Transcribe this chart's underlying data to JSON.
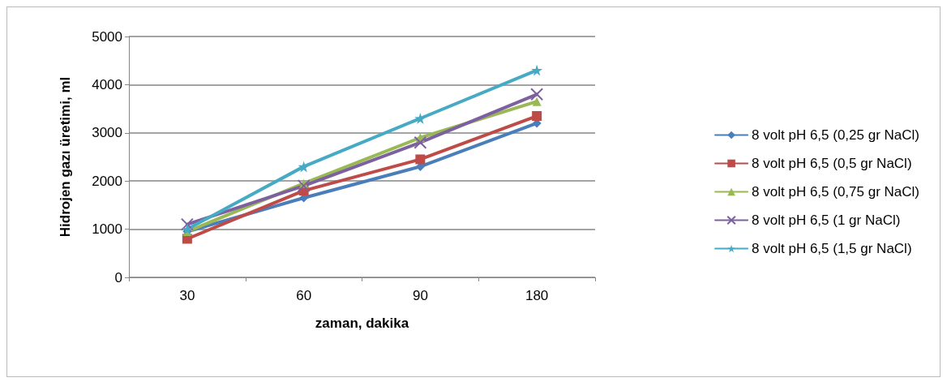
{
  "chart_data": {
    "type": "line",
    "xlabel": "zaman, dakika",
    "ylabel": "Hidrojen gazı üretimi, ml",
    "categories": [
      "30",
      "60",
      "90",
      "180"
    ],
    "ylim": [
      0,
      5000
    ],
    "yticks": [
      0,
      1000,
      2000,
      3000,
      4000,
      5000
    ],
    "grid": "y",
    "legend": "right",
    "series": [
      {
        "name": "8 volt pH 6,5 (0,25 gr NaCl)",
        "color": "#4a7ebb",
        "marker": "diamond",
        "values": [
          950,
          1650,
          2300,
          3200
        ]
      },
      {
        "name": "8 volt pH 6,5 (0,5 gr NaCl)",
        "color": "#be4b48",
        "marker": "square",
        "values": [
          800,
          1800,
          2450,
          3350
        ]
      },
      {
        "name": "8 volt pH 6,5 (0,75 gr NaCl)",
        "color": "#98b954",
        "marker": "triangle",
        "values": [
          950,
          1950,
          2900,
          3650
        ]
      },
      {
        "name": "8 volt pH 6,5 (1 gr NaCl)",
        "color": "#7d60a0",
        "marker": "cross",
        "values": [
          1100,
          1900,
          2800,
          3800
        ]
      },
      {
        "name": "8 volt pH 6,5 (1,5 gr NaCl)",
        "color": "#46aac5",
        "marker": "star",
        "values": [
          1000,
          2300,
          3300,
          4300
        ]
      }
    ]
  }
}
